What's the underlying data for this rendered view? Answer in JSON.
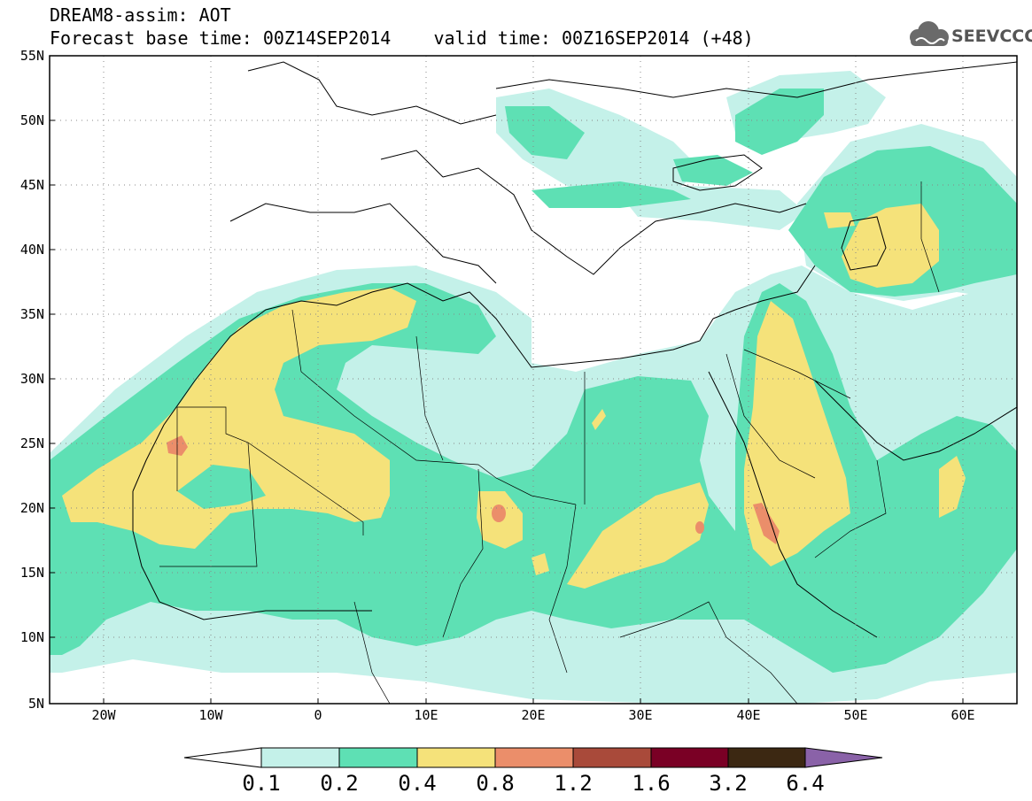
{
  "header": {
    "line1": "DREAM8-assim: AOT",
    "line2": "Forecast base time: 00Z14SEP2014    valid time: 00Z16SEP2014 (+48)"
  },
  "logo": {
    "text": "SEEVCCC",
    "icon": "cloud-icon"
  },
  "map": {
    "lat_labels": [
      "55N",
      "50N",
      "45N",
      "40N",
      "35N",
      "30N",
      "25N",
      "20N",
      "15N",
      "10N",
      "5N"
    ],
    "lon_labels": [
      "20W",
      "10W",
      "0",
      "10E",
      "20E",
      "30E",
      "40E",
      "50E",
      "60E"
    ],
    "colors": {
      "c01": "#c4f1e9",
      "c02": "#5ee0b4",
      "c04": "#f5e27a",
      "c08": "#eb8e6a",
      "coast": "#000000"
    }
  },
  "colorbar": {
    "labels": [
      "0.1",
      "0.2",
      "0.4",
      "0.8",
      "1.2",
      "1.6",
      "3.2",
      "6.4"
    ],
    "colors": [
      "#ffffff",
      "#c4f1e9",
      "#5ee0b4",
      "#f5e27a",
      "#eb8e6a",
      "#a94a3a",
      "#7a0025",
      "#3c2812",
      "#8a62a8"
    ]
  }
}
